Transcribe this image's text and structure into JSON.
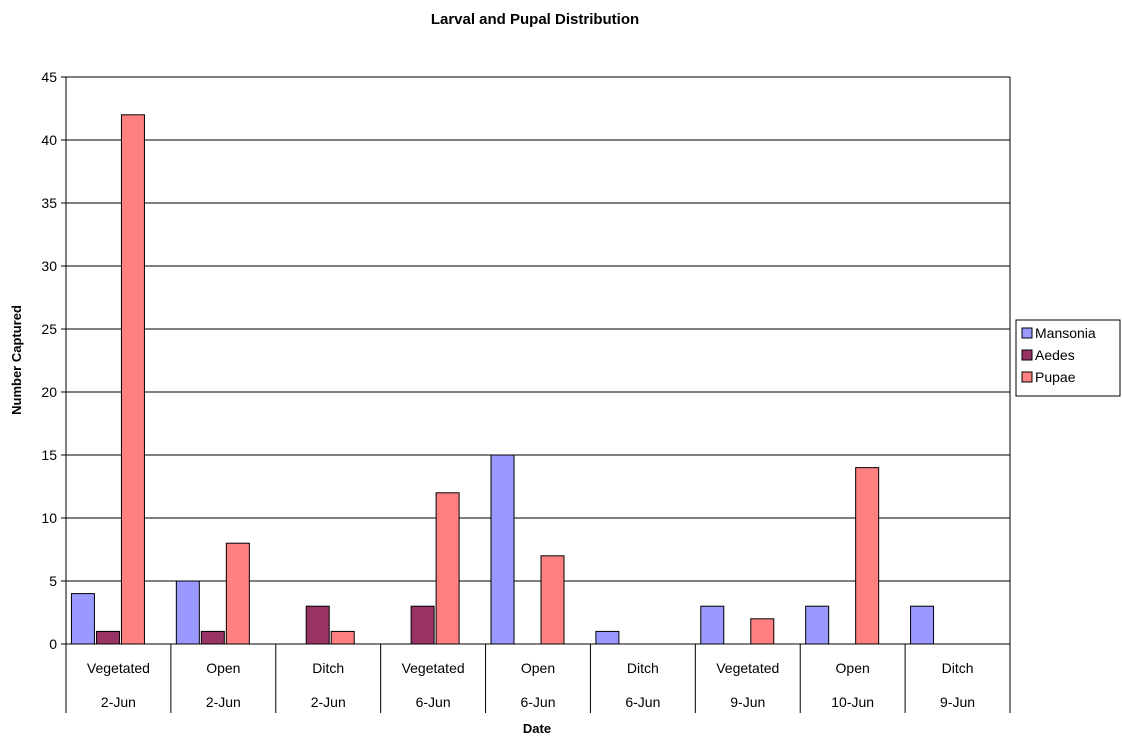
{
  "chart_data": {
    "type": "bar",
    "title": "Larval and Pupal Distribution",
    "xlabel": "Date",
    "ylabel": "Number Captured",
    "ylim": [
      0,
      45
    ],
    "ytick_step": 5,
    "grid": true,
    "legend_position": "right",
    "categories": [
      {
        "habitat": "Vegetated",
        "date": "2-Jun"
      },
      {
        "habitat": "Open",
        "date": "2-Jun"
      },
      {
        "habitat": "Ditch",
        "date": "2-Jun"
      },
      {
        "habitat": "Vegetated",
        "date": "6-Jun"
      },
      {
        "habitat": "Open",
        "date": "6-Jun"
      },
      {
        "habitat": "Ditch",
        "date": "6-Jun"
      },
      {
        "habitat": "Vegetated",
        "date": "9-Jun"
      },
      {
        "habitat": "Open",
        "date": "10-Jun"
      },
      {
        "habitat": "Ditch",
        "date": "9-Jun"
      }
    ],
    "series": [
      {
        "name": "Mansonia",
        "color": "#9999ff",
        "values": [
          4,
          5,
          0,
          0,
          15,
          1,
          3,
          3,
          3
        ]
      },
      {
        "name": "Aedes",
        "color": "#993366",
        "values": [
          1,
          1,
          3,
          3,
          0,
          0,
          0,
          0,
          0
        ]
      },
      {
        "name": "Pupae",
        "color": "#ff8080",
        "values": [
          42,
          8,
          1,
          12,
          7,
          0,
          2,
          14,
          0
        ]
      }
    ]
  }
}
